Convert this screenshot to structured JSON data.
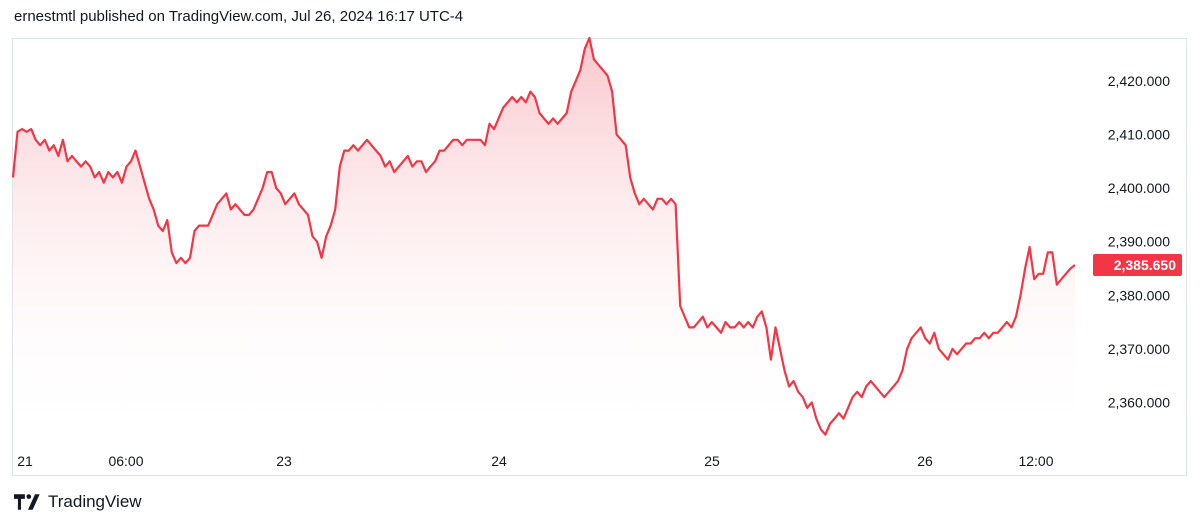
{
  "header": {
    "text": "ernestmtl published on TradingView.com, Jul 26, 2024 16:17 UTC-4"
  },
  "footer": {
    "brand": "TradingView",
    "logo_icon": "tradingview-logo-icon"
  },
  "colors": {
    "line": "#f23645",
    "fill_top": "#f7b4bb",
    "fill_bottom": "#ffffff",
    "tick_text": "#131722",
    "last_label_bg": "#f23645"
  },
  "chart_data": {
    "type": "area",
    "title": "",
    "xlabel": "",
    "ylabel": "",
    "x_ticks": [
      "21",
      "06:00",
      "23",
      "24",
      "25",
      "26",
      "12:00"
    ],
    "y_ticks": [
      "2,360.000",
      "2,370.000",
      "2,380.000",
      "2,390.000",
      "2,400.000",
      "2,410.000",
      "2,420.000"
    ],
    "y_tick_values": [
      2360,
      2370,
      2380,
      2390,
      2400,
      2410,
      2420
    ],
    "ylim": [
      2353,
      2428
    ],
    "last_value_label": "2,385.650",
    "last_value": 2385.65,
    "grid": false,
    "series": [
      {
        "values": [
          2402,
          2410.5,
          2411,
          2410.5,
          2411,
          2409,
          2408,
          2409,
          2407,
          2408,
          2406,
          2409,
          2405,
          2406,
          2405,
          2404,
          2405,
          2404,
          2402,
          2403,
          2401,
          2403,
          2402,
          2403,
          2401,
          2404,
          2405,
          2407,
          2404,
          2401,
          2398,
          2396,
          2393,
          2392,
          2394,
          2388,
          2386,
          2387,
          2386,
          2387,
          2392,
          2393,
          2393,
          2393,
          2395,
          2397,
          2398,
          2399,
          2396,
          2397,
          2396,
          2395,
          2395,
          2396,
          2398,
          2400,
          2403,
          2403,
          2400,
          2399,
          2397,
          2398,
          2399,
          2397,
          2396,
          2395,
          2391,
          2390,
          2387,
          2391,
          2393,
          2396,
          2404,
          2407,
          2407,
          2408,
          2407,
          2408,
          2409,
          2408,
          2407,
          2406,
          2404,
          2405,
          2403,
          2404,
          2405,
          2406,
          2404,
          2405,
          2405,
          2403,
          2404,
          2405,
          2407,
          2407,
          2408,
          2409,
          2409,
          2408,
          2409,
          2409,
          2409,
          2409,
          2408,
          2412,
          2411,
          2413,
          2415,
          2416,
          2417,
          2416,
          2417,
          2416,
          2418,
          2417,
          2414,
          2413,
          2412,
          2413,
          2412,
          2413,
          2414,
          2418,
          2420,
          2422,
          2426,
          2428,
          2424,
          2423,
          2422,
          2421,
          2418,
          2410,
          2409,
          2408,
          2402,
          2399,
          2397,
          2398,
          2397,
          2396,
          2398,
          2398,
          2397,
          2398,
          2397,
          2378,
          2376,
          2374,
          2374,
          2375,
          2376,
          2374,
          2375,
          2374,
          2373,
          2375,
          2374,
          2374,
          2375,
          2374,
          2375,
          2374,
          2376,
          2377,
          2374,
          2368,
          2374,
          2370,
          2366,
          2363,
          2364,
          2362,
          2361,
          2359,
          2360,
          2357,
          2355,
          2354,
          2356,
          2357,
          2358,
          2357,
          2359,
          2361,
          2362,
          2361,
          2363,
          2364,
          2363,
          2362,
          2361,
          2362,
          2363,
          2364,
          2366,
          2370,
          2372,
          2373,
          2374,
          2372,
          2371,
          2373,
          2370,
          2369,
          2368,
          2370,
          2369,
          2370,
          2371,
          2371,
          2372,
          2372,
          2373,
          2372,
          2373,
          2373,
          2374,
          2375,
          2374,
          2376,
          2380,
          2385,
          2389,
          2383,
          2384,
          2384,
          2388,
          2388,
          2382,
          2383,
          2384,
          2385,
          2385.65
        ]
      }
    ]
  }
}
